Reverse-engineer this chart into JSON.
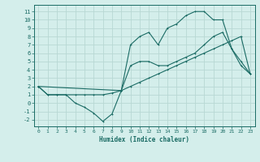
{
  "xlabel": "Humidex (Indice chaleur)",
  "background_color": "#d4eeeb",
  "grid_color": "#b8d8d4",
  "line_color": "#1a6b64",
  "spine_color": "#1a6b64",
  "xlim": [
    -0.5,
    23.5
  ],
  "ylim": [
    -2.8,
    11.8
  ],
  "xticks": [
    0,
    1,
    2,
    3,
    4,
    5,
    6,
    7,
    8,
    9,
    10,
    11,
    12,
    13,
    14,
    15,
    16,
    17,
    18,
    19,
    20,
    21,
    22,
    23
  ],
  "yticks": [
    -2,
    -1,
    0,
    1,
    2,
    3,
    4,
    5,
    6,
    7,
    8,
    9,
    10,
    11
  ],
  "line1_x": [
    0,
    1,
    2,
    3,
    4,
    5,
    6,
    7,
    8,
    9,
    10,
    11,
    12,
    13,
    14,
    15,
    16,
    17,
    18,
    19,
    20,
    21,
    22,
    23
  ],
  "line1_y": [
    2,
    1,
    1,
    1,
    0,
    -0.5,
    -1.2,
    -2.2,
    -1.3,
    1.5,
    4.5,
    5,
    5,
    4.5,
    4.5,
    5,
    5.5,
    6,
    7,
    8,
    8.5,
    6.5,
    4.5,
    3.5
  ],
  "line2_x": [
    0,
    1,
    2,
    3,
    4,
    5,
    6,
    7,
    8,
    9,
    10,
    11,
    12,
    13,
    14,
    15,
    16,
    17,
    18,
    19,
    20,
    21,
    22,
    23
  ],
  "line2_y": [
    2,
    1,
    1,
    1,
    1,
    1,
    1,
    1,
    1.2,
    1.5,
    2,
    2.5,
    3,
    3.5,
    4,
    4.5,
    5,
    5.5,
    6,
    6.5,
    7,
    7.5,
    8,
    3.5
  ],
  "line3_x": [
    0,
    9,
    10,
    11,
    12,
    13,
    14,
    15,
    16,
    17,
    18,
    19,
    20,
    21,
    22,
    23
  ],
  "line3_y": [
    2,
    1.5,
    7,
    8,
    8.5,
    7,
    9,
    9.5,
    10.5,
    11,
    11,
    10,
    10,
    6.5,
    5,
    3.5
  ]
}
